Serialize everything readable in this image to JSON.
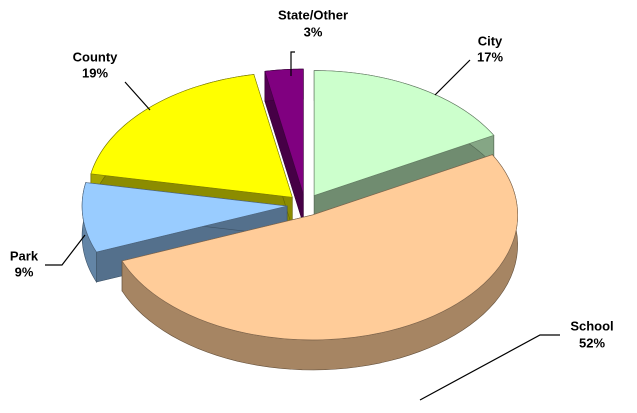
{
  "chart_data": {
    "type": "pie3d",
    "categories": [
      "City",
      "School",
      "Park",
      "County",
      "State/Other"
    ],
    "values": [
      17,
      52,
      9,
      19,
      3
    ],
    "value_labels": [
      "17%",
      "52%",
      "9%",
      "19%",
      "3%"
    ],
    "colors": [
      "#ccffcc",
      "#ffcc99",
      "#99ccff",
      "#ffff00",
      "#800080"
    ]
  }
}
